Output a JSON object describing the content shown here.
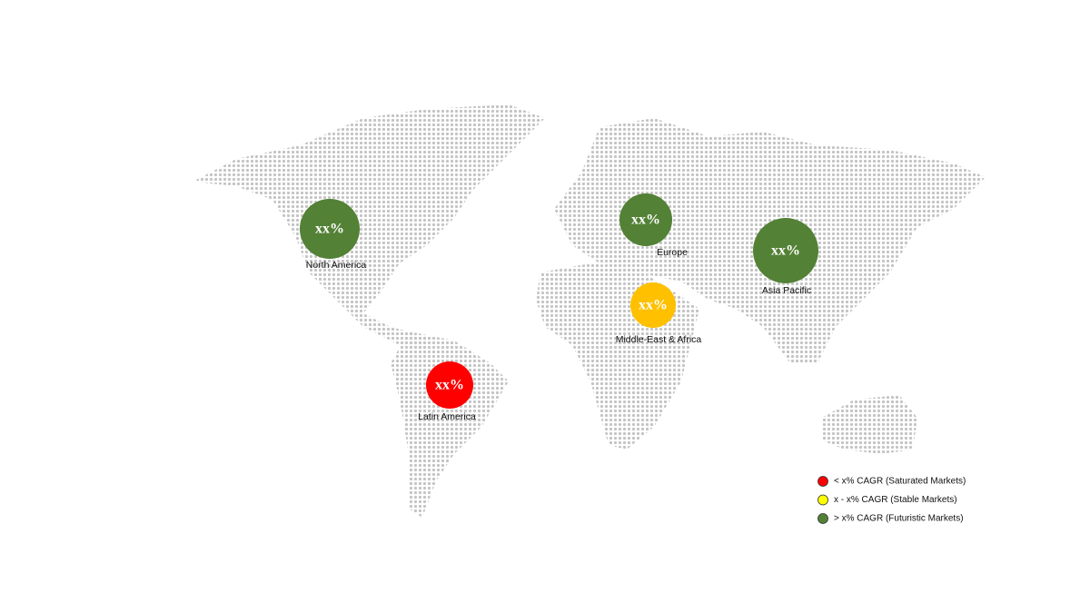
{
  "regions": [
    {
      "label": "North America",
      "value_text": "xx%",
      "color": "#538135"
    },
    {
      "label": "Europe",
      "value_text": "xx%",
      "color": "#538135"
    },
    {
      "label": "Asia Pacific",
      "value_text": "xx%",
      "color": "#538135"
    },
    {
      "label": "Middle-East & Africa",
      "value_text": "xx%",
      "color": "#ffc000"
    },
    {
      "label": "Latin America",
      "value_text": "xx%",
      "color": "#ff0000"
    }
  ],
  "legend": [
    {
      "label": "< x% CAGR (Saturated Markets)",
      "color": "#ff0000"
    },
    {
      "label": "x - x% CAGR (Stable Markets)",
      "color": "#ffff00"
    },
    {
      "label": "> x% CAGR (Futuristic Markets)",
      "color": "#538135"
    }
  ]
}
